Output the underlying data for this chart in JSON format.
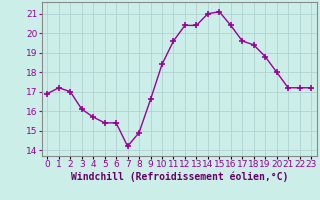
{
  "x": [
    0,
    1,
    2,
    3,
    4,
    5,
    6,
    7,
    8,
    9,
    10,
    11,
    12,
    13,
    14,
    15,
    16,
    17,
    18,
    19,
    20,
    21,
    22,
    23
  ],
  "y": [
    16.9,
    17.2,
    17.0,
    16.1,
    15.7,
    15.4,
    15.4,
    14.2,
    14.9,
    16.6,
    18.4,
    19.6,
    20.4,
    20.4,
    21.0,
    21.1,
    20.4,
    19.6,
    19.4,
    18.8,
    18.0,
    17.2,
    17.2,
    17.2
  ],
  "line_color": "#990099",
  "marker": "+",
  "marker_size": 4,
  "marker_lw": 1.2,
  "bg_color": "#cceee8",
  "grid_color": "#aacccc",
  "xlabel": "Windchill (Refroidissement éolien,°C)",
  "xlabel_color": "#660066",
  "xlabel_fontsize": 7,
  "ylabel_ticks": [
    14,
    15,
    16,
    17,
    18,
    19,
    20,
    21
  ],
  "xtick_labels": [
    "0",
    "1",
    "2",
    "3",
    "4",
    "5",
    "6",
    "7",
    "8",
    "9",
    "10",
    "11",
    "12",
    "13",
    "14",
    "15",
    "16",
    "17",
    "18",
    "19",
    "20",
    "21",
    "22",
    "23"
  ],
  "ylim": [
    13.7,
    21.6
  ],
  "xlim": [
    -0.5,
    23.5
  ],
  "tick_fontsize": 6.5,
  "spine_color": "#888888",
  "line_width": 1.0
}
